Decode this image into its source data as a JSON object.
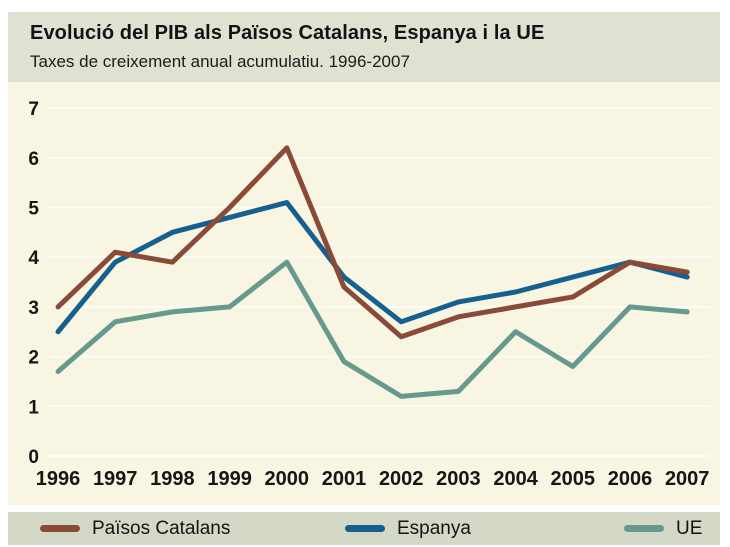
{
  "header": {
    "title": "Evolució del PIB als Països Catalans, Espanya i la UE",
    "subtitle": "Taxes de creixement anual acumulatiu. 1996-2007"
  },
  "chart_data": {
    "type": "line",
    "title": "Evolució del PIB als Països Catalans, Espanya i la UE",
    "subtitle": "Taxes de creixement anual acumulatiu. 1996-2007",
    "xlabel": "",
    "ylabel": "",
    "categories": [
      "1996",
      "1997",
      "1998",
      "1999",
      "2000",
      "2001",
      "2002",
      "2003",
      "2004",
      "2005",
      "2006",
      "2007"
    ],
    "ylim": [
      0,
      7
    ],
    "yticks": [
      0,
      1,
      2,
      3,
      4,
      5,
      6,
      7
    ],
    "grid": true,
    "legend_position": "bottom",
    "series": [
      {
        "name": "Països Catalans",
        "color": "#8a4a38",
        "zorder": 3,
        "values": [
          3.0,
          4.1,
          3.9,
          5.0,
          6.2,
          3.4,
          2.4,
          2.8,
          3.0,
          3.2,
          3.9,
          3.7
        ]
      },
      {
        "name": "Espanya",
        "color": "#15608f",
        "zorder": 2,
        "values": [
          2.5,
          3.9,
          4.5,
          4.8,
          5.1,
          3.6,
          2.7,
          3.1,
          3.3,
          3.6,
          3.9,
          3.6
        ]
      },
      {
        "name": "UE",
        "color": "#679a8e",
        "zorder": 1,
        "values": [
          1.7,
          2.7,
          2.9,
          3.0,
          3.9,
          1.9,
          1.2,
          1.3,
          2.5,
          1.8,
          3.0,
          2.9
        ]
      }
    ]
  }
}
